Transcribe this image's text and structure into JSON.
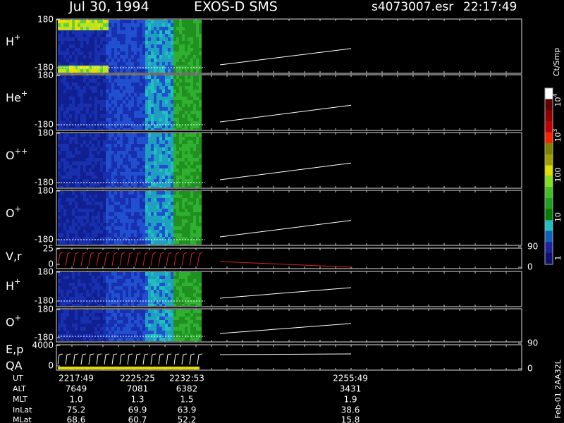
{
  "header": {
    "date": "Jul 30, 1994",
    "instrument": "EXOS-D SMS",
    "file": "s4073007.esr",
    "time": "22:17:49"
  },
  "panels": [
    {
      "label": {
        "base": "H",
        "sup": "+"
      },
      "yticks": [
        180,
        -180
      ]
    },
    {
      "label": {
        "base": "He",
        "sup": "+"
      },
      "yticks": [
        180,
        -180
      ]
    },
    {
      "label": {
        "base": "O",
        "sup": "++"
      },
      "yticks": [
        180,
        -180
      ]
    },
    {
      "label": {
        "base": "O",
        "sup": "+"
      },
      "yticks": [
        180,
        -180
      ]
    },
    {
      "label": {
        "base": "V,r"
      },
      "yticks": [
        25,
        0
      ],
      "y2ticks": [
        90,
        0
      ]
    },
    {
      "label": {
        "base": "H",
        "sup": "+"
      },
      "yticks": [
        180,
        -180
      ]
    },
    {
      "label": {
        "base": "O",
        "sup": "+"
      },
      "yticks": [
        180,
        -180
      ]
    },
    {
      "label": {
        "base": "E,p"
      },
      "label2": {
        "base": "QA"
      },
      "yticks": [
        4000,
        0
      ],
      "y2ticks": [
        90,
        0
      ]
    }
  ],
  "colorbar": {
    "unit": "Ct/Smp",
    "labels": [
      {
        "base": "10",
        "sup": "4"
      },
      {
        "base": "10",
        "sup": "3"
      },
      {
        "base": "100"
      },
      {
        "base": "10"
      },
      {
        "base": "1"
      }
    ]
  },
  "footer": {
    "rows": [
      {
        "label": "UT",
        "values": [
          "2217:49",
          "2225:25",
          "2232:53",
          "2255:49"
        ]
      },
      {
        "label": "ALT",
        "values": [
          "7649",
          "7081",
          "6382",
          "3431"
        ]
      },
      {
        "label": "MLT",
        "values": [
          "1.0",
          "1.3",
          "1.5",
          "1.9"
        ]
      },
      {
        "label": "InLat",
        "values": [
          "75.2",
          "69.9",
          "63.9",
          "38.6"
        ]
      },
      {
        "label": "MLat",
        "values": [
          "68.6",
          "60.7",
          "52.2",
          "15.8"
        ]
      }
    ],
    "stamp": "Feb-01 2AA32L"
  }
}
